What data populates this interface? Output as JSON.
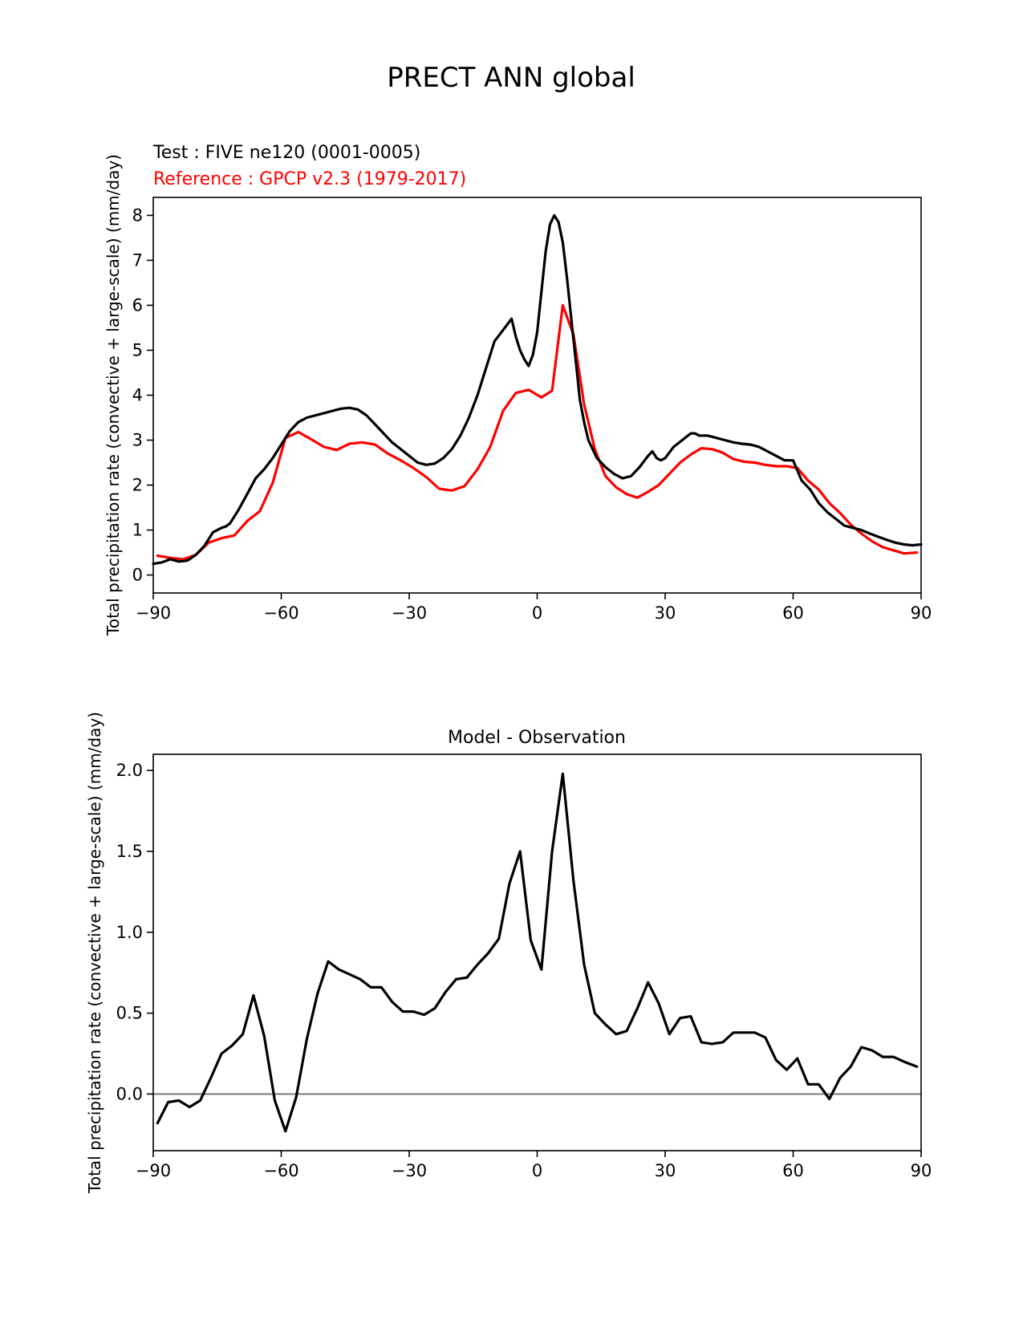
{
  "figure": {
    "suptitle": "PRECT ANN global"
  },
  "chart_data": [
    {
      "type": "line",
      "test_label": "Test : FIVE ne120 (0001-0005)",
      "reference_label": "Reference : GPCP v2.3 (1979-2017)",
      "ylabel": "Total precipitation rate (convective + large-scale) (mm/day)",
      "xlabel": "",
      "xlim": [
        -90,
        90
      ],
      "ylim": [
        -0.4,
        8.4
      ],
      "xticks": [
        -90,
        -60,
        -30,
        0,
        30,
        60,
        90
      ],
      "xtick_labels": [
        "−90",
        "−60",
        "−30",
        "0",
        "30",
        "60",
        "90"
      ],
      "yticks": [
        0,
        1,
        2,
        3,
        4,
        5,
        6,
        7,
        8
      ],
      "ytick_labels": [
        "0",
        "1",
        "2",
        "3",
        "4",
        "5",
        "6",
        "7",
        "8"
      ],
      "series": [
        {
          "name": "Test : FIVE ne120 (0001-0005)",
          "color": "#000000",
          "x": [
            -90,
            -88,
            -86,
            -84,
            -82,
            -80,
            -78,
            -76,
            -75,
            -74,
            -73,
            -72,
            -70,
            -68,
            -66,
            -64,
            -62,
            -60,
            -58,
            -56,
            -54,
            -52,
            -50,
            -48,
            -46,
            -44,
            -42,
            -40,
            -38,
            -36,
            -34,
            -32,
            -30,
            -28,
            -26,
            -24,
            -22,
            -20,
            -18,
            -16,
            -14,
            -12,
            -10,
            -8,
            -6,
            -5,
            -4,
            -3,
            -2,
            -1,
            0,
            1,
            2,
            3,
            4,
            5,
            6,
            7,
            8,
            9,
            10,
            11,
            12,
            13,
            14,
            16,
            18,
            20,
            22,
            24,
            26,
            27,
            28,
            29,
            30,
            32,
            34,
            36,
            37,
            38,
            40,
            42,
            44,
            46,
            48,
            50,
            52,
            54,
            56,
            58,
            60,
            62,
            64,
            66,
            68,
            70,
            72,
            74,
            76,
            78,
            80,
            82,
            84,
            86,
            88,
            90
          ],
          "y": [
            0.25,
            0.28,
            0.35,
            0.3,
            0.32,
            0.45,
            0.65,
            0.95,
            1.0,
            1.05,
            1.08,
            1.15,
            1.45,
            1.8,
            2.15,
            2.35,
            2.6,
            2.9,
            3.2,
            3.4,
            3.5,
            3.55,
            3.6,
            3.65,
            3.7,
            3.72,
            3.68,
            3.55,
            3.35,
            3.15,
            2.95,
            2.8,
            2.65,
            2.5,
            2.45,
            2.48,
            2.6,
            2.8,
            3.1,
            3.5,
            4.0,
            4.6,
            5.2,
            5.45,
            5.7,
            5.3,
            5.0,
            4.8,
            4.65,
            4.9,
            5.4,
            6.3,
            7.2,
            7.8,
            8.0,
            7.85,
            7.4,
            6.6,
            5.7,
            4.8,
            3.9,
            3.4,
            3.0,
            2.8,
            2.6,
            2.4,
            2.25,
            2.15,
            2.2,
            2.4,
            2.65,
            2.75,
            2.6,
            2.55,
            2.6,
            2.85,
            3.0,
            3.15,
            3.15,
            3.1,
            3.1,
            3.05,
            3.0,
            2.95,
            2.92,
            2.9,
            2.85,
            2.75,
            2.65,
            2.55,
            2.55,
            2.1,
            1.9,
            1.6,
            1.4,
            1.25,
            1.1,
            1.05,
            1.0,
            0.92,
            0.85,
            0.78,
            0.72,
            0.68,
            0.66,
            0.68
          ]
        },
        {
          "name": "Reference : GPCP v2.3 (1979-2017)",
          "color": "#ff0000",
          "x": [
            -89,
            -86,
            -83,
            -80,
            -77,
            -74,
            -71,
            -68,
            -65,
            -62,
            -59,
            -56,
            -53,
            -50,
            -47,
            -44,
            -41,
            -38,
            -35,
            -32,
            -29,
            -26,
            -23,
            -20,
            -17,
            -14,
            -11,
            -8,
            -5,
            -2,
            1,
            3.5,
            6,
            8.5,
            11,
            13.5,
            16,
            18.5,
            21,
            23.5,
            26,
            28.5,
            31,
            33.5,
            36,
            38.5,
            41,
            43.5,
            46,
            48.5,
            51,
            53.5,
            56,
            58.5,
            61,
            63.5,
            66,
            68.5,
            71,
            73.5,
            76,
            78.5,
            81,
            83.5,
            86,
            89
          ],
          "y": [
            0.43,
            0.38,
            0.35,
            0.45,
            0.72,
            0.82,
            0.88,
            1.2,
            1.42,
            2.05,
            3.05,
            3.18,
            3.02,
            2.85,
            2.78,
            2.92,
            2.95,
            2.9,
            2.7,
            2.55,
            2.38,
            2.18,
            1.92,
            1.88,
            1.98,
            2.35,
            2.85,
            3.65,
            4.05,
            4.12,
            3.95,
            4.1,
            6.0,
            5.35,
            3.8,
            2.8,
            2.2,
            1.95,
            1.8,
            1.72,
            1.85,
            2.0,
            2.25,
            2.5,
            2.68,
            2.82,
            2.8,
            2.72,
            2.58,
            2.52,
            2.5,
            2.45,
            2.42,
            2.42,
            2.38,
            2.1,
            1.9,
            1.6,
            1.38,
            1.12,
            0.92,
            0.75,
            0.62,
            0.55,
            0.48,
            0.5
          ]
        }
      ]
    },
    {
      "type": "line",
      "title": "Model - Observation",
      "ylabel": "Total precipitation rate (convective + large-scale) (mm/day)",
      "xlabel": "",
      "xlim": [
        -90,
        90
      ],
      "ylim": [
        -0.35,
        2.1
      ],
      "xticks": [
        -90,
        -60,
        -30,
        0,
        30,
        60,
        90
      ],
      "xtick_labels": [
        "−90",
        "−60",
        "−30",
        "0",
        "30",
        "60",
        "90"
      ],
      "yticks": [
        0,
        0.5,
        1,
        1.5,
        2
      ],
      "ytick_labels": [
        "0.0",
        "0.5",
        "1.0",
        "1.5",
        "2.0"
      ],
      "reference_line": {
        "y": 0,
        "color": "#808080"
      },
      "series": [
        {
          "name": "Model - Observation",
          "color": "#000000",
          "x": [
            -89,
            -86.5,
            -84,
            -81.5,
            -79,
            -76.5,
            -74,
            -71.5,
            -69,
            -66.5,
            -64,
            -61.5,
            -59,
            -56.5,
            -54,
            -51.5,
            -49,
            -46.5,
            -44,
            -41.5,
            -39,
            -36.5,
            -34,
            -31.5,
            -29,
            -26.5,
            -24,
            -21.5,
            -19,
            -16.5,
            -14,
            -11.5,
            -9,
            -6.5,
            -4,
            -1.5,
            1,
            3.5,
            6,
            8.5,
            11,
            13.5,
            16,
            18.5,
            21,
            23.5,
            26,
            28.5,
            31,
            33.5,
            36,
            38.5,
            41,
            43.5,
            46,
            48.5,
            51,
            53.5,
            56,
            58.5,
            61,
            63.5,
            66,
            68.5,
            71,
            73.5,
            76,
            78.5,
            81,
            83.5,
            86,
            89
          ],
          "y": [
            -0.18,
            -0.05,
            -0.04,
            -0.08,
            -0.04,
            0.1,
            0.25,
            0.3,
            0.37,
            0.61,
            0.36,
            -0.04,
            -0.23,
            -0.02,
            0.34,
            0.62,
            0.82,
            0.77,
            0.74,
            0.71,
            0.66,
            0.66,
            0.57,
            0.51,
            0.51,
            0.49,
            0.53,
            0.63,
            0.71,
            0.72,
            0.8,
            0.87,
            0.96,
            1.3,
            1.5,
            0.95,
            0.77,
            1.5,
            1.98,
            1.32,
            0.8,
            0.5,
            0.43,
            0.37,
            0.39,
            0.53,
            0.69,
            0.56,
            0.37,
            0.47,
            0.48,
            0.32,
            0.31,
            0.32,
            0.38,
            0.38,
            0.38,
            0.35,
            0.21,
            0.15,
            0.22,
            0.06,
            0.06,
            -0.03,
            0.1,
            0.17,
            0.29,
            0.27,
            0.23,
            0.23,
            0.2,
            0.17
          ]
        }
      ]
    }
  ]
}
